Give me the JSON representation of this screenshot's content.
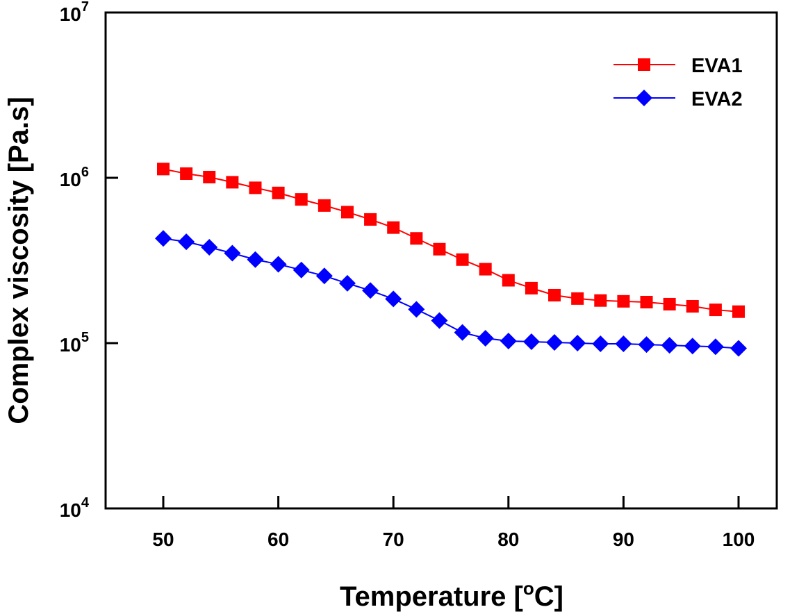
{
  "chart_data": {
    "type": "line",
    "title": "",
    "xlabel": "Temperature [",
    "xlabel_unit_sup": "o",
    "xlabel_unit_tail": "C]",
    "ylabel": "Complex viscosity [Pa.s]",
    "xlim": [
      45,
      106
    ],
    "ylim": [
      10000,
      10000000
    ],
    "yscale": "log",
    "grid": false,
    "legend_position": "top-right",
    "x_ticks": [
      50,
      60,
      70,
      80,
      90,
      100
    ],
    "x_tick_labels": [
      "50",
      "60",
      "70",
      "80",
      "90",
      "100"
    ],
    "y_ticks": [
      10000,
      100000,
      1000000,
      10000000
    ],
    "y_tick_labels": [
      {
        "base": "10",
        "exp": "4"
      },
      {
        "base": "10",
        "exp": "5"
      },
      {
        "base": "10",
        "exp": "6"
      },
      {
        "base": "10",
        "exp": "7"
      }
    ],
    "x": [
      50,
      52,
      54,
      56,
      58,
      60,
      62,
      64,
      66,
      68,
      70,
      72,
      74,
      76,
      78,
      80,
      82,
      84,
      86,
      88,
      90,
      92,
      94,
      96,
      98,
      100
    ],
    "series": [
      {
        "name": "EVA1",
        "color": "#ff0000",
        "marker": "square",
        "values": [
          1130000,
          1060000,
          1010000,
          940000,
          870000,
          810000,
          740000,
          680000,
          620000,
          560000,
          500000,
          430000,
          370000,
          320000,
          280000,
          240000,
          215000,
          195000,
          186000,
          181000,
          179000,
          177000,
          172000,
          167000,
          159000,
          155000
        ]
      },
      {
        "name": "EVA2",
        "color": "#0000ff",
        "marker": "diamond",
        "values": [
          430000,
          410000,
          380000,
          350000,
          320000,
          300000,
          277000,
          255000,
          230000,
          208000,
          185000,
          160000,
          137000,
          116000,
          107000,
          103000,
          102000,
          101000,
          100000,
          99000,
          99000,
          98000,
          97000,
          96000,
          95000,
          93000
        ]
      }
    ]
  }
}
